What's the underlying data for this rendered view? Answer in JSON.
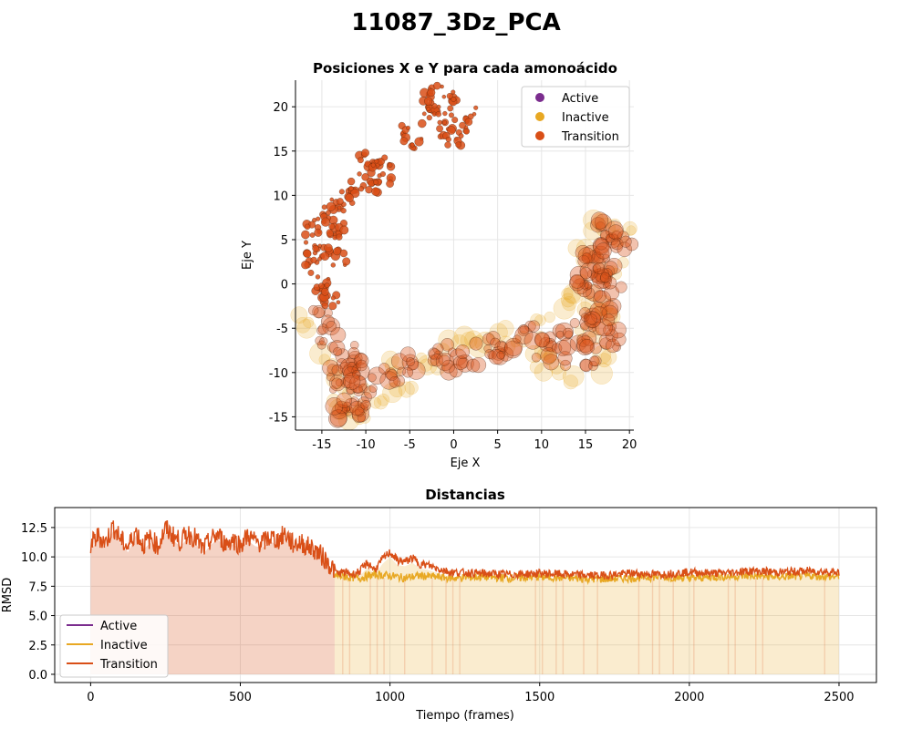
{
  "figure": {
    "suptitle": "11087_3Dz_PCA"
  },
  "colors": {
    "active": "#7b2d8e",
    "inactive": "#e8a823",
    "transition": "#d94f17"
  },
  "chart_data": [
    {
      "type": "scatter",
      "title": "Posiciones X e Y para cada amonoácido",
      "xlabel": "Eje X",
      "ylabel": "Eje Y",
      "xlim": [
        -18,
        20.5
      ],
      "ylim": [
        -16.5,
        23
      ],
      "xticks": [
        -15,
        -10,
        -5,
        0,
        5,
        10,
        15,
        20
      ],
      "yticks": [
        -15,
        -10,
        -5,
        0,
        5,
        10,
        15,
        20
      ],
      "grid": true,
      "legend": {
        "position": "top-right",
        "entries": [
          "Active",
          "Inactive",
          "Transition"
        ]
      },
      "series": [
        {
          "name": "Active",
          "points": []
        },
        {
          "name": "Inactive",
          "points": [
            [
              -16.5,
              -4.5
            ],
            [
              -14,
              -9
            ],
            [
              -12,
              -14
            ],
            [
              -9,
              -13
            ],
            [
              -7,
              -9
            ],
            [
              -3,
              -9
            ],
            [
              0,
              -7
            ],
            [
              3,
              -6
            ],
            [
              6,
              -6
            ],
            [
              9,
              -5
            ],
            [
              11,
              -7
            ],
            [
              13,
              -10
            ],
            [
              14,
              0
            ],
            [
              15,
              3
            ],
            [
              16,
              6
            ],
            [
              17,
              -9
            ],
            [
              18,
              2
            ],
            [
              19,
              6
            ],
            [
              16,
              -2
            ],
            [
              15,
              -5
            ],
            [
              18,
              -3
            ],
            [
              12,
              -3
            ],
            [
              10,
              -9
            ],
            [
              -6,
              -12
            ],
            [
              -11,
              -15
            ],
            [
              -13,
              -12
            ]
          ]
        },
        {
          "name": "Transition",
          "points": [
            [
              -2,
              20
            ],
            [
              -3,
              19
            ],
            [
              -4,
              16
            ],
            [
              0,
              21
            ],
            [
              1,
              18
            ],
            [
              -1,
              17
            ],
            [
              -5,
              17
            ],
            [
              -2,
              22
            ],
            [
              0,
              16
            ],
            [
              -3,
              21
            ],
            [
              2,
              19
            ],
            [
              -1,
              19
            ],
            [
              -9,
              13
            ],
            [
              -10,
              12
            ],
            [
              -11,
              11
            ],
            [
              -8,
              14
            ],
            [
              -12,
              10
            ],
            [
              -9,
              11
            ],
            [
              -10,
              14
            ],
            [
              -13,
              9
            ],
            [
              -8,
              12
            ],
            [
              -14,
              8
            ],
            [
              -15,
              7
            ],
            [
              -16,
              6
            ],
            [
              -14,
              5
            ],
            [
              -15,
              4
            ],
            [
              -13,
              3
            ],
            [
              -16,
              2
            ],
            [
              -15,
              0
            ],
            [
              -14,
              -2
            ],
            [
              -15,
              -4
            ],
            [
              -14,
              -6
            ],
            [
              -15,
              -1
            ],
            [
              -16,
              4
            ],
            [
              -13,
              6
            ],
            [
              -12,
              -8
            ],
            [
              -13,
              -10
            ],
            [
              -11,
              -12
            ],
            [
              -12,
              -14
            ],
            [
              -10,
              -11
            ],
            [
              -13,
              -13
            ],
            [
              -11,
              -9
            ],
            [
              -12,
              -11
            ],
            [
              -10,
              -14
            ],
            [
              -7,
              -10
            ],
            [
              -5,
              -9
            ],
            [
              -2,
              -8
            ],
            [
              0,
              -9
            ],
            [
              2,
              -8
            ],
            [
              4,
              -7
            ],
            [
              6,
              -7
            ],
            [
              8,
              -6
            ],
            [
              10,
              -7
            ],
            [
              12,
              -8
            ],
            [
              13,
              -6
            ],
            [
              15,
              -4
            ],
            [
              16,
              -6
            ],
            [
              17,
              -2
            ],
            [
              16,
              0
            ],
            [
              17,
              2
            ],
            [
              16,
              4
            ],
            [
              17,
              6
            ],
            [
              18,
              5
            ],
            [
              19,
              5
            ],
            [
              16,
              -8
            ],
            [
              18,
              -6
            ],
            [
              17,
              -4
            ],
            [
              15,
              1
            ],
            [
              18,
              0
            ],
            [
              16,
              2
            ]
          ]
        }
      ]
    },
    {
      "type": "line",
      "title": "Distancias",
      "xlabel": "Tiempo (frames)",
      "ylabel": "RMSD",
      "xlim": [
        -120,
        2625
      ],
      "ylim": [
        -0.7,
        14.2
      ],
      "xticks": [
        0,
        500,
        1000,
        1500,
        2000,
        2500
      ],
      "yticks": [
        0.0,
        2.5,
        5.0,
        7.5,
        10.0,
        12.5
      ],
      "ytick_labels": [
        "0.0",
        "2.5",
        "5.0",
        "7.5",
        "10.0",
        "12.5"
      ],
      "grid": true,
      "legend": {
        "position": "bottom-left",
        "entries": [
          "Active",
          "Inactive",
          "Transition"
        ]
      },
      "segments": [
        {
          "state": "Transition",
          "start": 0,
          "end": 815
        },
        {
          "state": "Inactive",
          "start": 815,
          "end": 2500
        }
      ],
      "series": [
        {
          "name": "Transition",
          "x": [
            0,
            25,
            50,
            75,
            100,
            125,
            150,
            175,
            200,
            225,
            250,
            275,
            300,
            325,
            350,
            375,
            400,
            425,
            450,
            475,
            500,
            525,
            550,
            575,
            600,
            625,
            650,
            675,
            700,
            725,
            750,
            775,
            800,
            825,
            850,
            875,
            900,
            925,
            950,
            975,
            1000,
            1025,
            1050,
            1075,
            1100,
            1125,
            1150,
            1175,
            1200,
            1300,
            1400,
            1500,
            1600,
            1700,
            1800,
            1900,
            2000,
            2100,
            2200,
            2300,
            2400,
            2500
          ],
          "y": [
            11.0,
            11.8,
            11.2,
            12.6,
            11.5,
            10.8,
            12.2,
            11.0,
            11.6,
            10.9,
            12.4,
            11.8,
            11.3,
            12.0,
            11.6,
            10.6,
            11.4,
            11.9,
            11.1,
            11.5,
            11.0,
            11.8,
            11.3,
            11.2,
            11.7,
            11.4,
            12.0,
            11.1,
            11.2,
            10.9,
            10.6,
            10.0,
            9.3,
            8.6,
            8.7,
            8.5,
            8.8,
            9.5,
            8.9,
            9.8,
            10.4,
            9.7,
            9.6,
            9.9,
            9.4,
            9.3,
            9.1,
            8.9,
            8.7,
            8.6,
            8.5,
            8.6,
            8.5,
            8.4,
            8.6,
            8.5,
            8.7,
            8.6,
            8.8,
            8.7,
            8.8,
            8.7
          ]
        },
        {
          "name": "Inactive",
          "x": [
            815,
            850,
            900,
            950,
            1000,
            1050,
            1100,
            1150,
            1200,
            1300,
            1400,
            1500,
            1600,
            1700,
            1800,
            1900,
            2000,
            2100,
            2200,
            2300,
            2400,
            2500
          ],
          "y": [
            8.4,
            8.3,
            8.2,
            8.5,
            8.4,
            8.2,
            8.4,
            8.3,
            8.2,
            8.3,
            8.2,
            8.3,
            8.2,
            8.1,
            8.2,
            8.3,
            8.2,
            8.3,
            8.4,
            8.3,
            8.4,
            8.3
          ]
        }
      ]
    }
  ]
}
